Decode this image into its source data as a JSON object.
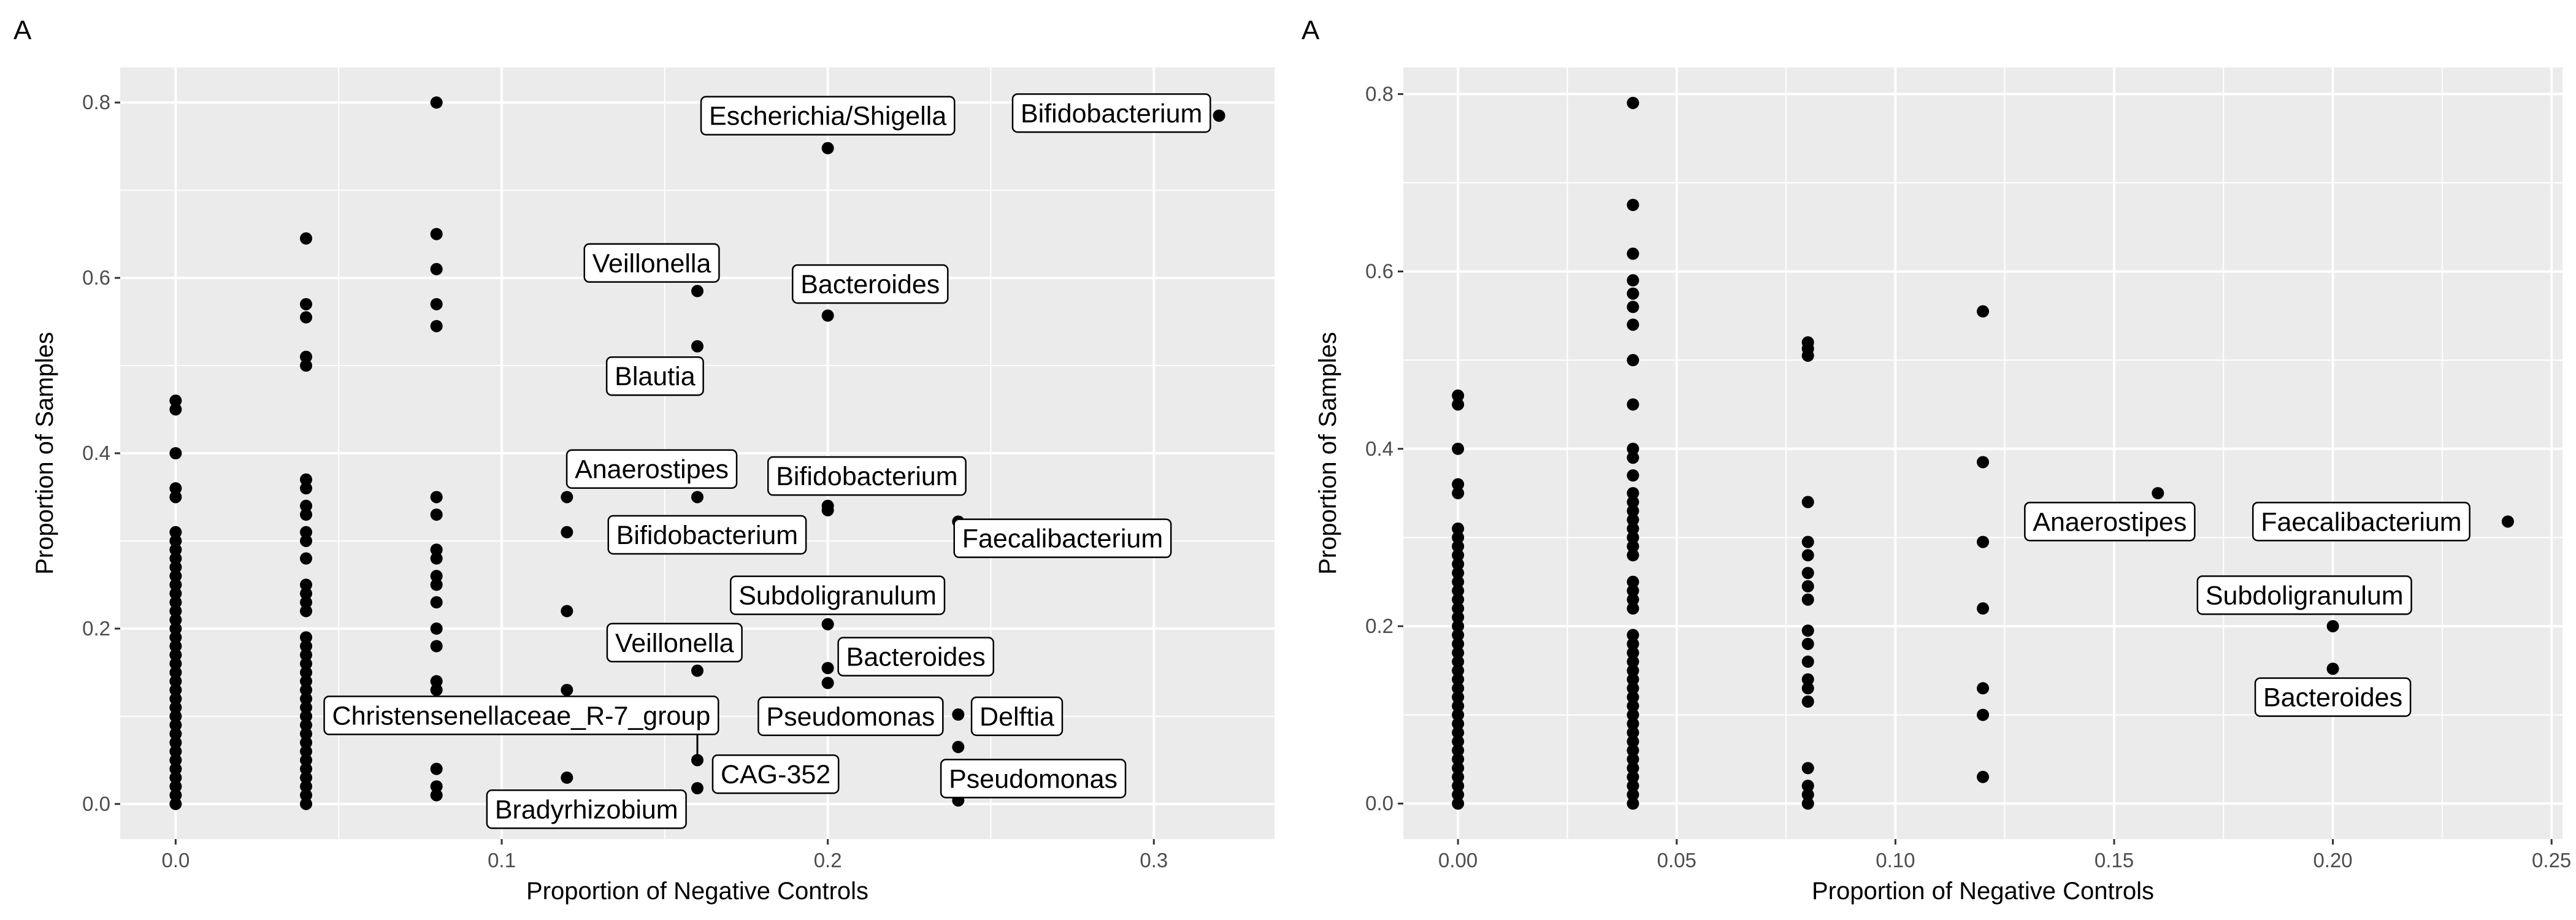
{
  "chart_data": [
    {
      "type": "scatter",
      "panel_tag": "A",
      "xlabel": "Proportion of Negative Controls",
      "ylabel": "Proportion of Samples",
      "xlim": [
        -0.017,
        0.337
      ],
      "ylim": [
        -0.04,
        0.84
      ],
      "x_ticks": [
        {
          "value": 0.0,
          "label": "0.0"
        },
        {
          "value": 0.1,
          "label": "0.1"
        },
        {
          "value": 0.2,
          "label": "0.2"
        },
        {
          "value": 0.3,
          "label": "0.3"
        }
      ],
      "y_ticks": [
        {
          "value": 0.0,
          "label": "0.0"
        },
        {
          "value": 0.2,
          "label": "0.2"
        },
        {
          "value": 0.4,
          "label": "0.4"
        },
        {
          "value": 0.6,
          "label": "0.6"
        },
        {
          "value": 0.8,
          "label": "0.8"
        }
      ],
      "grid": true,
      "points": [
        {
          "x": 0.0,
          "y": 0.0
        },
        {
          "x": 0.0,
          "y": 0.01
        },
        {
          "x": 0.0,
          "y": 0.02
        },
        {
          "x": 0.0,
          "y": 0.03
        },
        {
          "x": 0.0,
          "y": 0.04
        },
        {
          "x": 0.0,
          "y": 0.05
        },
        {
          "x": 0.0,
          "y": 0.06
        },
        {
          "x": 0.0,
          "y": 0.07
        },
        {
          "x": 0.0,
          "y": 0.08
        },
        {
          "x": 0.0,
          "y": 0.09
        },
        {
          "x": 0.0,
          "y": 0.1
        },
        {
          "x": 0.0,
          "y": 0.11
        },
        {
          "x": 0.0,
          "y": 0.12
        },
        {
          "x": 0.0,
          "y": 0.13
        },
        {
          "x": 0.0,
          "y": 0.14
        },
        {
          "x": 0.0,
          "y": 0.15
        },
        {
          "x": 0.0,
          "y": 0.16
        },
        {
          "x": 0.0,
          "y": 0.17
        },
        {
          "x": 0.0,
          "y": 0.18
        },
        {
          "x": 0.0,
          "y": 0.19
        },
        {
          "x": 0.0,
          "y": 0.2
        },
        {
          "x": 0.0,
          "y": 0.21
        },
        {
          "x": 0.0,
          "y": 0.22
        },
        {
          "x": 0.0,
          "y": 0.23
        },
        {
          "x": 0.0,
          "y": 0.24
        },
        {
          "x": 0.0,
          "y": 0.25
        },
        {
          "x": 0.0,
          "y": 0.26
        },
        {
          "x": 0.0,
          "y": 0.27
        },
        {
          "x": 0.0,
          "y": 0.28
        },
        {
          "x": 0.0,
          "y": 0.29
        },
        {
          "x": 0.0,
          "y": 0.3
        },
        {
          "x": 0.0,
          "y": 0.31
        },
        {
          "x": 0.0,
          "y": 0.35
        },
        {
          "x": 0.0,
          "y": 0.36
        },
        {
          "x": 0.0,
          "y": 0.4
        },
        {
          "x": 0.0,
          "y": 0.45
        },
        {
          "x": 0.0,
          "y": 0.46
        },
        {
          "x": 0.04,
          "y": 0.0
        },
        {
          "x": 0.04,
          "y": 0.01
        },
        {
          "x": 0.04,
          "y": 0.02
        },
        {
          "x": 0.04,
          "y": 0.03
        },
        {
          "x": 0.04,
          "y": 0.04
        },
        {
          "x": 0.04,
          "y": 0.05
        },
        {
          "x": 0.04,
          "y": 0.06
        },
        {
          "x": 0.04,
          "y": 0.07
        },
        {
          "x": 0.04,
          "y": 0.08
        },
        {
          "x": 0.04,
          "y": 0.09
        },
        {
          "x": 0.04,
          "y": 0.1
        },
        {
          "x": 0.04,
          "y": 0.11
        },
        {
          "x": 0.04,
          "y": 0.12
        },
        {
          "x": 0.04,
          "y": 0.13
        },
        {
          "x": 0.04,
          "y": 0.14
        },
        {
          "x": 0.04,
          "y": 0.15
        },
        {
          "x": 0.04,
          "y": 0.16
        },
        {
          "x": 0.04,
          "y": 0.17
        },
        {
          "x": 0.04,
          "y": 0.18
        },
        {
          "x": 0.04,
          "y": 0.19
        },
        {
          "x": 0.04,
          "y": 0.22
        },
        {
          "x": 0.04,
          "y": 0.23
        },
        {
          "x": 0.04,
          "y": 0.24
        },
        {
          "x": 0.04,
          "y": 0.25
        },
        {
          "x": 0.04,
          "y": 0.28
        },
        {
          "x": 0.04,
          "y": 0.3
        },
        {
          "x": 0.04,
          "y": 0.31
        },
        {
          "x": 0.04,
          "y": 0.33
        },
        {
          "x": 0.04,
          "y": 0.34
        },
        {
          "x": 0.04,
          "y": 0.36
        },
        {
          "x": 0.04,
          "y": 0.37
        },
        {
          "x": 0.04,
          "y": 0.5
        },
        {
          "x": 0.04,
          "y": 0.51
        },
        {
          "x": 0.04,
          "y": 0.555
        },
        {
          "x": 0.04,
          "y": 0.57
        },
        {
          "x": 0.04,
          "y": 0.645
        },
        {
          "x": 0.08,
          "y": 0.01
        },
        {
          "x": 0.08,
          "y": 0.02
        },
        {
          "x": 0.08,
          "y": 0.04
        },
        {
          "x": 0.08,
          "y": 0.09
        },
        {
          "x": 0.08,
          "y": 0.11
        },
        {
          "x": 0.08,
          "y": 0.13
        },
        {
          "x": 0.08,
          "y": 0.14
        },
        {
          "x": 0.08,
          "y": 0.18
        },
        {
          "x": 0.08,
          "y": 0.2
        },
        {
          "x": 0.08,
          "y": 0.23
        },
        {
          "x": 0.08,
          "y": 0.25
        },
        {
          "x": 0.08,
          "y": 0.26
        },
        {
          "x": 0.08,
          "y": 0.28
        },
        {
          "x": 0.08,
          "y": 0.29
        },
        {
          "x": 0.08,
          "y": 0.33
        },
        {
          "x": 0.08,
          "y": 0.35
        },
        {
          "x": 0.08,
          "y": 0.545
        },
        {
          "x": 0.08,
          "y": 0.57
        },
        {
          "x": 0.08,
          "y": 0.61
        },
        {
          "x": 0.08,
          "y": 0.65
        },
        {
          "x": 0.08,
          "y": 0.8
        },
        {
          "x": 0.12,
          "y": 0.03
        },
        {
          "x": 0.12,
          "y": 0.13
        },
        {
          "x": 0.12,
          "y": 0.22
        },
        {
          "x": 0.12,
          "y": 0.31
        },
        {
          "x": 0.12,
          "y": 0.35
        },
        {
          "x": 0.16,
          "y": 0.018
        },
        {
          "x": 0.16,
          "y": 0.05
        },
        {
          "x": 0.16,
          "y": 0.152
        },
        {
          "x": 0.16,
          "y": 0.35
        },
        {
          "x": 0.16,
          "y": 0.522
        },
        {
          "x": 0.16,
          "y": 0.585
        },
        {
          "x": 0.2,
          "y": 0.138
        },
        {
          "x": 0.2,
          "y": 0.155
        },
        {
          "x": 0.2,
          "y": 0.205
        },
        {
          "x": 0.2,
          "y": 0.335
        },
        {
          "x": 0.2,
          "y": 0.34
        },
        {
          "x": 0.2,
          "y": 0.557
        },
        {
          "x": 0.2,
          "y": 0.748
        },
        {
          "x": 0.24,
          "y": 0.004
        },
        {
          "x": 0.24,
          "y": 0.065
        },
        {
          "x": 0.24,
          "y": 0.102
        },
        {
          "x": 0.24,
          "y": 0.322
        },
        {
          "x": 0.32,
          "y": 0.785
        }
      ],
      "annotations": [
        {
          "text": "Escherichia/Shigella",
          "x": 0.2,
          "y": 0.748,
          "label_x": 0.2,
          "label_y": 0.785
        },
        {
          "text": "Bifidobacterium",
          "x": 0.32,
          "y": 0.785,
          "label_x": 0.287,
          "label_y": 0.788
        },
        {
          "text": "Veillonella",
          "x": 0.16,
          "y": 0.585,
          "label_x": 0.146,
          "label_y": 0.617
        },
        {
          "text": "Bacteroides",
          "x": 0.2,
          "y": 0.557,
          "label_x": 0.213,
          "label_y": 0.593
        },
        {
          "text": "Blautia",
          "x": 0.16,
          "y": 0.522,
          "label_x": 0.147,
          "label_y": 0.488
        },
        {
          "text": "Anaerostipes",
          "x": 0.12,
          "y": 0.35,
          "label_x": 0.146,
          "label_y": 0.382
        },
        {
          "text": "Bifidobacterium",
          "x": 0.2,
          "y": 0.34,
          "label_x": 0.212,
          "label_y": 0.374
        },
        {
          "text": "Bifidobacterium",
          "x": 0.16,
          "y": 0.35,
          "label_x": 0.163,
          "label_y": 0.307
        },
        {
          "text": "Faecalibacterium",
          "x": 0.24,
          "y": 0.322,
          "label_x": 0.272,
          "label_y": 0.303
        },
        {
          "text": "Subdoligranulum",
          "x": 0.2,
          "y": 0.205,
          "label_x": 0.203,
          "label_y": 0.238
        },
        {
          "text": "Veillonella",
          "x": 0.16,
          "y": 0.152,
          "label_x": 0.153,
          "label_y": 0.184
        },
        {
          "text": "Bacteroides",
          "x": 0.2,
          "y": 0.155,
          "label_x": 0.227,
          "label_y": 0.168
        },
        {
          "text": "Christensenellaceae_R-7_group",
          "x": 0.16,
          "y": 0.05,
          "label_x": 0.106,
          "label_y": 0.101,
          "leader": true
        },
        {
          "text": "Pseudomonas",
          "x": 0.24,
          "y": 0.102,
          "label_x": 0.207,
          "label_y": 0.1
        },
        {
          "text": "Delftia",
          "x": 0.24,
          "y": 0.102,
          "label_x": 0.258,
          "label_y": 0.1
        },
        {
          "text": "CAG-352",
          "x": 0.16,
          "y": 0.05,
          "label_x": 0.184,
          "label_y": 0.034
        },
        {
          "text": "Pseudomonas",
          "x": 0.24,
          "y": 0.065,
          "label_x": 0.263,
          "label_y": 0.029
        },
        {
          "text": "Bradyrhizobium",
          "x": 0.12,
          "y": 0.03,
          "label_x": 0.126,
          "label_y": -0.006
        }
      ]
    },
    {
      "type": "scatter",
      "panel_tag": "A",
      "xlabel": "Proportion of Negative Controls",
      "ylabel": "Proportion of Samples",
      "xlim": [
        -0.0125,
        0.2525
      ],
      "ylim": [
        -0.04,
        0.83
      ],
      "x_ticks": [
        {
          "value": 0.0,
          "label": "0.00"
        },
        {
          "value": 0.05,
          "label": "0.05"
        },
        {
          "value": 0.1,
          "label": "0.10"
        },
        {
          "value": 0.15,
          "label": "0.15"
        },
        {
          "value": 0.2,
          "label": "0.20"
        },
        {
          "value": 0.25,
          "label": "0.25"
        }
      ],
      "y_ticks": [
        {
          "value": 0.0,
          "label": "0.0"
        },
        {
          "value": 0.2,
          "label": "0.2"
        },
        {
          "value": 0.4,
          "label": "0.4"
        },
        {
          "value": 0.6,
          "label": "0.6"
        },
        {
          "value": 0.8,
          "label": "0.8"
        }
      ],
      "grid": true,
      "points": [
        {
          "x": 0.0,
          "y": 0.0
        },
        {
          "x": 0.0,
          "y": 0.01
        },
        {
          "x": 0.0,
          "y": 0.02
        },
        {
          "x": 0.0,
          "y": 0.03
        },
        {
          "x": 0.0,
          "y": 0.04
        },
        {
          "x": 0.0,
          "y": 0.05
        },
        {
          "x": 0.0,
          "y": 0.06
        },
        {
          "x": 0.0,
          "y": 0.07
        },
        {
          "x": 0.0,
          "y": 0.08
        },
        {
          "x": 0.0,
          "y": 0.09
        },
        {
          "x": 0.0,
          "y": 0.1
        },
        {
          "x": 0.0,
          "y": 0.11
        },
        {
          "x": 0.0,
          "y": 0.12
        },
        {
          "x": 0.0,
          "y": 0.13
        },
        {
          "x": 0.0,
          "y": 0.14
        },
        {
          "x": 0.0,
          "y": 0.15
        },
        {
          "x": 0.0,
          "y": 0.16
        },
        {
          "x": 0.0,
          "y": 0.17
        },
        {
          "x": 0.0,
          "y": 0.18
        },
        {
          "x": 0.0,
          "y": 0.19
        },
        {
          "x": 0.0,
          "y": 0.2
        },
        {
          "x": 0.0,
          "y": 0.21
        },
        {
          "x": 0.0,
          "y": 0.22
        },
        {
          "x": 0.0,
          "y": 0.23
        },
        {
          "x": 0.0,
          "y": 0.24
        },
        {
          "x": 0.0,
          "y": 0.25
        },
        {
          "x": 0.0,
          "y": 0.26
        },
        {
          "x": 0.0,
          "y": 0.27
        },
        {
          "x": 0.0,
          "y": 0.28
        },
        {
          "x": 0.0,
          "y": 0.29
        },
        {
          "x": 0.0,
          "y": 0.3
        },
        {
          "x": 0.0,
          "y": 0.31
        },
        {
          "x": 0.0,
          "y": 0.35
        },
        {
          "x": 0.0,
          "y": 0.36
        },
        {
          "x": 0.0,
          "y": 0.4
        },
        {
          "x": 0.0,
          "y": 0.45
        },
        {
          "x": 0.0,
          "y": 0.46
        },
        {
          "x": 0.04,
          "y": 0.0
        },
        {
          "x": 0.04,
          "y": 0.01
        },
        {
          "x": 0.04,
          "y": 0.02
        },
        {
          "x": 0.04,
          "y": 0.03
        },
        {
          "x": 0.04,
          "y": 0.04
        },
        {
          "x": 0.04,
          "y": 0.05
        },
        {
          "x": 0.04,
          "y": 0.06
        },
        {
          "x": 0.04,
          "y": 0.07
        },
        {
          "x": 0.04,
          "y": 0.08
        },
        {
          "x": 0.04,
          "y": 0.09
        },
        {
          "x": 0.04,
          "y": 0.1
        },
        {
          "x": 0.04,
          "y": 0.11
        },
        {
          "x": 0.04,
          "y": 0.12
        },
        {
          "x": 0.04,
          "y": 0.13
        },
        {
          "x": 0.04,
          "y": 0.14
        },
        {
          "x": 0.04,
          "y": 0.15
        },
        {
          "x": 0.04,
          "y": 0.16
        },
        {
          "x": 0.04,
          "y": 0.17
        },
        {
          "x": 0.04,
          "y": 0.18
        },
        {
          "x": 0.04,
          "y": 0.19
        },
        {
          "x": 0.04,
          "y": 0.22
        },
        {
          "x": 0.04,
          "y": 0.23
        },
        {
          "x": 0.04,
          "y": 0.24
        },
        {
          "x": 0.04,
          "y": 0.25
        },
        {
          "x": 0.04,
          "y": 0.28
        },
        {
          "x": 0.04,
          "y": 0.29
        },
        {
          "x": 0.04,
          "y": 0.3
        },
        {
          "x": 0.04,
          "y": 0.31
        },
        {
          "x": 0.04,
          "y": 0.32
        },
        {
          "x": 0.04,
          "y": 0.33
        },
        {
          "x": 0.04,
          "y": 0.34
        },
        {
          "x": 0.04,
          "y": 0.35
        },
        {
          "x": 0.04,
          "y": 0.37
        },
        {
          "x": 0.04,
          "y": 0.39
        },
        {
          "x": 0.04,
          "y": 0.4
        },
        {
          "x": 0.04,
          "y": 0.45
        },
        {
          "x": 0.04,
          "y": 0.5
        },
        {
          "x": 0.04,
          "y": 0.54
        },
        {
          "x": 0.04,
          "y": 0.56
        },
        {
          "x": 0.04,
          "y": 0.575
        },
        {
          "x": 0.04,
          "y": 0.59
        },
        {
          "x": 0.04,
          "y": 0.62
        },
        {
          "x": 0.04,
          "y": 0.675
        },
        {
          "x": 0.04,
          "y": 0.79
        },
        {
          "x": 0.08,
          "y": 0.0
        },
        {
          "x": 0.08,
          "y": 0.01
        },
        {
          "x": 0.08,
          "y": 0.02
        },
        {
          "x": 0.08,
          "y": 0.04
        },
        {
          "x": 0.08,
          "y": 0.115
        },
        {
          "x": 0.08,
          "y": 0.13
        },
        {
          "x": 0.08,
          "y": 0.14
        },
        {
          "x": 0.08,
          "y": 0.16
        },
        {
          "x": 0.08,
          "y": 0.18
        },
        {
          "x": 0.08,
          "y": 0.195
        },
        {
          "x": 0.08,
          "y": 0.23
        },
        {
          "x": 0.08,
          "y": 0.245
        },
        {
          "x": 0.08,
          "y": 0.26
        },
        {
          "x": 0.08,
          "y": 0.28
        },
        {
          "x": 0.08,
          "y": 0.295
        },
        {
          "x": 0.08,
          "y": 0.34
        },
        {
          "x": 0.08,
          "y": 0.505
        },
        {
          "x": 0.08,
          "y": 0.513
        },
        {
          "x": 0.08,
          "y": 0.52
        },
        {
          "x": 0.12,
          "y": 0.03
        },
        {
          "x": 0.12,
          "y": 0.1
        },
        {
          "x": 0.12,
          "y": 0.13
        },
        {
          "x": 0.12,
          "y": 0.22
        },
        {
          "x": 0.12,
          "y": 0.295
        },
        {
          "x": 0.12,
          "y": 0.385
        },
        {
          "x": 0.12,
          "y": 0.555
        },
        {
          "x": 0.16,
          "y": 0.35
        },
        {
          "x": 0.2,
          "y": 0.152
        },
        {
          "x": 0.2,
          "y": 0.2
        },
        {
          "x": 0.24,
          "y": 0.318
        }
      ],
      "annotations": [
        {
          "text": "Anaerostipes",
          "x": 0.16,
          "y": 0.35,
          "label_x": 0.149,
          "label_y": 0.318
        },
        {
          "text": "Faecalibacterium",
          "x": 0.24,
          "y": 0.318,
          "label_x": 0.2065,
          "label_y": 0.318
        },
        {
          "text": "Subdoligranulum",
          "x": 0.2,
          "y": 0.2,
          "label_x": 0.1935,
          "label_y": 0.235
        },
        {
          "text": "Bacteroides",
          "x": 0.2,
          "y": 0.152,
          "label_x": 0.2,
          "label_y": 0.12
        }
      ]
    }
  ]
}
